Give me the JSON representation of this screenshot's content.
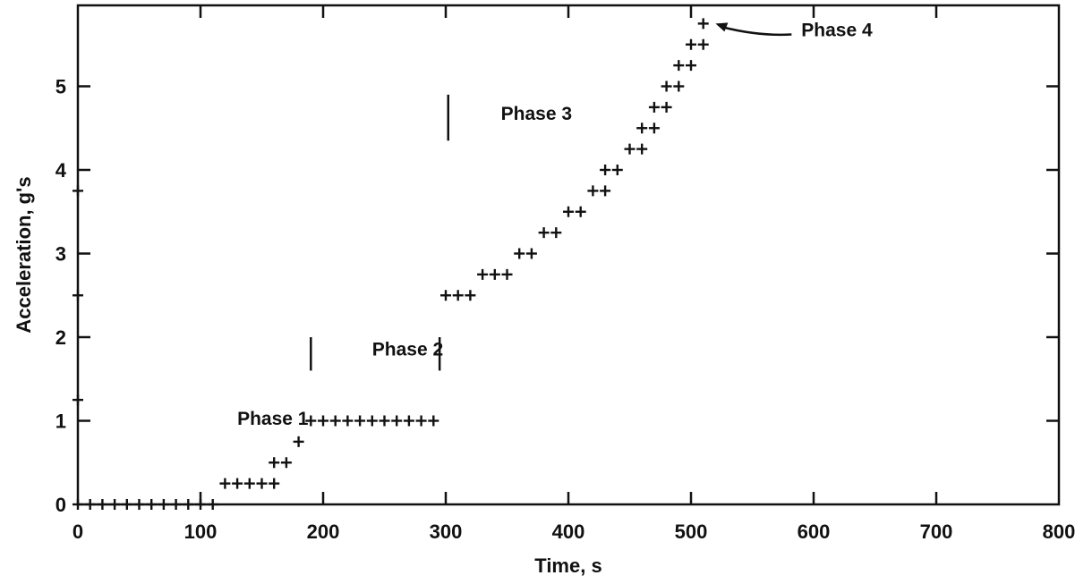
{
  "chart_data": {
    "type": "scatter",
    "xlabel": "Time, s",
    "ylabel": "Acceleration, g's",
    "xlim": [
      0,
      800
    ],
    "ylim": [
      0,
      6
    ],
    "x_ticks": [
      0,
      100,
      200,
      300,
      400,
      500,
      600,
      700,
      800
    ],
    "x_tick_labels": [
      "0",
      "100",
      "200",
      "300",
      "400",
      "500",
      "600",
      "700",
      "800"
    ],
    "y_ticks": [
      0,
      1,
      2,
      3,
      4,
      5
    ],
    "y_tick_labels": [
      "0",
      "1",
      "2",
      "3",
      "4",
      "5"
    ],
    "grid": false,
    "marker": "plus",
    "series": [
      {
        "x": [
          0,
          0,
          0,
          0,
          10,
          20,
          30,
          40,
          50,
          60,
          70,
          80,
          90,
          100,
          110,
          120,
          130,
          140,
          150,
          160,
          160,
          170,
          180,
          190,
          200,
          210,
          220,
          230,
          240,
          250,
          260,
          270,
          280,
          290,
          300,
          310,
          320,
          330,
          340,
          350,
          360,
          370,
          380,
          390,
          400,
          410,
          420,
          430,
          430,
          440,
          450,
          460,
          460,
          470,
          470,
          480,
          480,
          490,
          490,
          500,
          500,
          510,
          510
        ],
        "y": [
          1.25,
          2.5,
          3.75,
          0,
          0,
          0,
          0,
          0,
          0,
          0,
          0,
          0,
          0,
          0,
          0,
          0.25,
          0.25,
          0.25,
          0.25,
          0.25,
          0.5,
          0.5,
          0.75,
          1,
          1,
          1,
          1,
          1,
          1,
          1,
          1,
          1,
          1,
          1,
          2.5,
          2.5,
          2.5,
          2.75,
          2.75,
          2.75,
          3,
          3,
          3.25,
          3.25,
          3.5,
          3.5,
          3.75,
          3.75,
          4,
          4,
          4.25,
          4.25,
          4.5,
          4.5,
          4.75,
          4.75,
          5,
          5,
          5.25,
          5.25,
          5.5,
          5.5,
          5.75
        ]
      }
    ],
    "annotations": [
      {
        "text": "Phase 1",
        "x": 130,
        "y": 0.95
      },
      {
        "text": "Phase 2",
        "x": 240,
        "y": 1.78
      },
      {
        "text": "Phase 3",
        "x": 345,
        "y": 4.6
      },
      {
        "text": "Phase 4",
        "x": 590,
        "y": 5.6
      }
    ],
    "phase_markers": [
      {
        "x": 190,
        "y_from": 1.6,
        "y_to": 2.0
      },
      {
        "x": 295,
        "y_from": 1.6,
        "y_to": 2.0
      },
      {
        "x": 302,
        "y_from": 4.35,
        "y_to": 4.9
      }
    ],
    "arrows": [
      {
        "from_x": 582,
        "from_y": 5.62,
        "to_x": 520,
        "to_y": 5.75
      }
    ]
  }
}
